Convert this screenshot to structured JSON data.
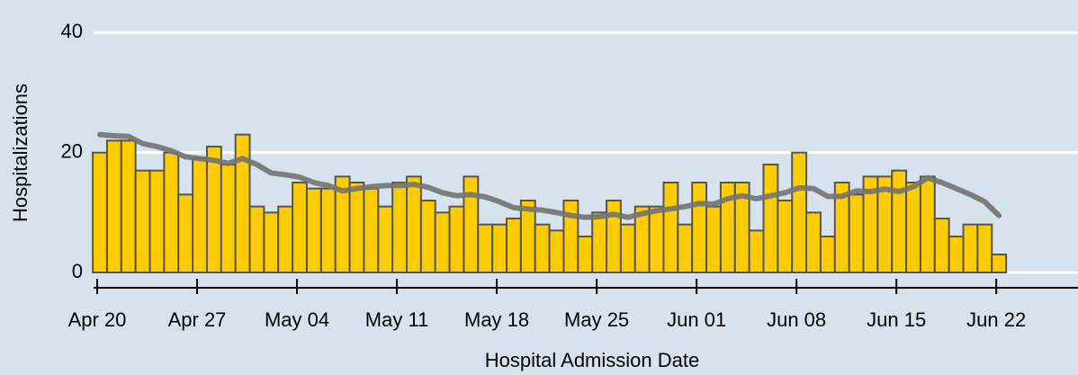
{
  "chart_data": {
    "type": "bar",
    "x_label": "Hospital Admission Date",
    "y_label": "Hospitalizations",
    "categories": [
      "Apr 20",
      "Apr 21",
      "Apr 22",
      "Apr 23",
      "Apr 24",
      "Apr 25",
      "Apr 26",
      "Apr 27",
      "Apr 28",
      "Apr 29",
      "Apr 30",
      "May 01",
      "May 02",
      "May 03",
      "May 04",
      "May 05",
      "May 06",
      "May 07",
      "May 08",
      "May 09",
      "May 10",
      "May 11",
      "May 12",
      "May 13",
      "May 14",
      "May 15",
      "May 16",
      "May 17",
      "May 18",
      "May 19",
      "May 20",
      "May 21",
      "May 22",
      "May 23",
      "May 24",
      "May 25",
      "May 26",
      "May 27",
      "May 28",
      "May 29",
      "May 30",
      "May 31",
      "Jun 01",
      "Jun 02",
      "Jun 03",
      "Jun 04",
      "Jun 05",
      "Jun 06",
      "Jun 07",
      "Jun 08",
      "Jun 09",
      "Jun 10",
      "Jun 11",
      "Jun 12",
      "Jun 13",
      "Jun 14",
      "Jun 15",
      "Jun 16",
      "Jun 17",
      "Jun 18",
      "Jun 19",
      "Jun 20",
      "Jun 21",
      "Jun 22"
    ],
    "series": [
      {
        "type": "bar",
        "color": "#ffcc00",
        "values": [
          20,
          22,
          22,
          17,
          17,
          20,
          13,
          19,
          21,
          18,
          23,
          11,
          10,
          11,
          15,
          14,
          14,
          16,
          15,
          14,
          11,
          15,
          16,
          12,
          10,
          11,
          16,
          8,
          8,
          9,
          12,
          8,
          7,
          12,
          6,
          10,
          12,
          8,
          11,
          11,
          15,
          8,
          15,
          11,
          15,
          15,
          7,
          18,
          12,
          20,
          10,
          6,
          15,
          13,
          16,
          16,
          17,
          15,
          16,
          9,
          6,
          8,
          8,
          3
        ]
      },
      {
        "type": "line",
        "color": "#737373",
        "values": [
          23,
          22.8,
          22.7,
          21.5,
          21,
          20.3,
          19.3,
          19,
          18.7,
          18.2,
          19,
          18,
          16.6,
          16.3,
          15.9,
          15,
          14.5,
          13.6,
          14,
          14.3,
          14.5,
          14.5,
          14.7,
          14.2,
          13.3,
          12.8,
          13,
          12.6,
          11.8,
          10.8,
          10.6,
          10.4,
          10,
          9.5,
          9.2,
          9.3,
          9.7,
          9.2,
          9.8,
          10.3,
          10.6,
          11,
          11.5,
          11.4,
          12.3,
          12.8,
          12.3,
          12.8,
          13.3,
          14.1,
          14,
          12.7,
          12.7,
          13.6,
          13.5,
          13.9,
          13.5,
          14.3,
          15.8,
          15,
          14,
          13,
          11.8,
          9.5
        ]
      }
    ],
    "xticks": [
      "Apr 20",
      "Apr 27",
      "May 04",
      "May 11",
      "May 18",
      "May 25",
      "Jun 01",
      "Jun 08",
      "Jun 15",
      "Jun 22"
    ],
    "ylim": [
      0,
      45
    ],
    "yticks": [
      0,
      20,
      40
    ],
    "grid": true
  }
}
